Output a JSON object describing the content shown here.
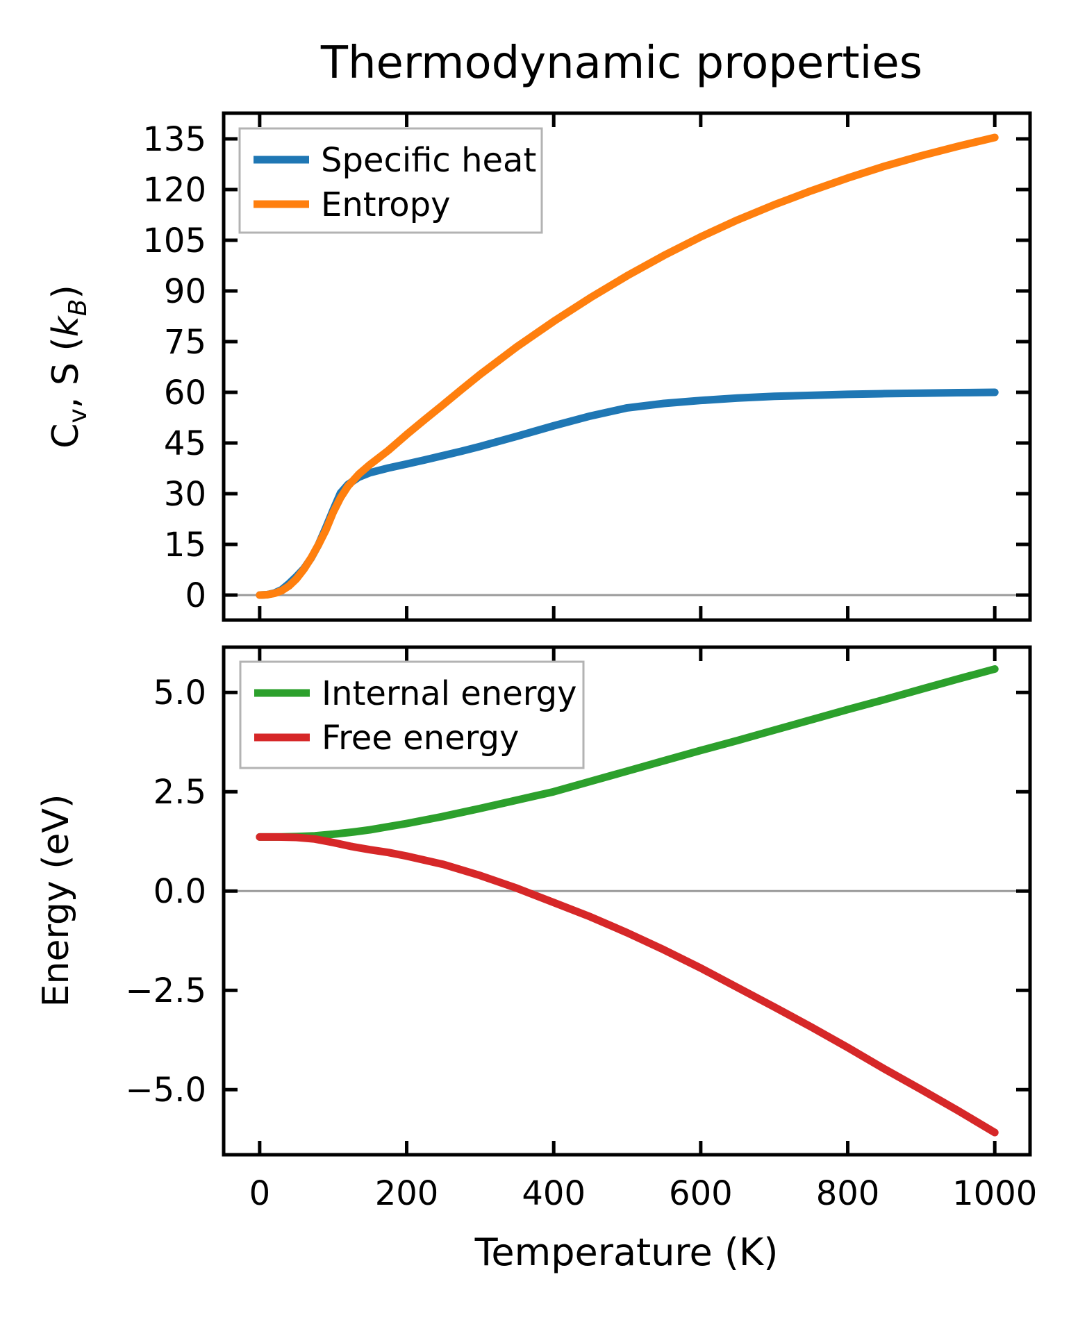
{
  "figure": {
    "title": "Thermodynamic properties",
    "background": "#ffffff",
    "foreground": "#000000",
    "zero_line_color": "#9a9a9a",
    "legend_frame_color": "#b3b3b3"
  },
  "chart_data": [
    {
      "type": "line",
      "panel": "top",
      "ylabel": "Cv, S (kB)",
      "ylabel_segments": [
        {
          "text": "C"
        },
        {
          "text": "v",
          "sub": true
        },
        {
          "text": ", S ("
        },
        {
          "text": "k",
          "italic": true
        },
        {
          "text": "B",
          "sub": true,
          "italic": true
        },
        {
          "text": ")"
        }
      ],
      "xlabel": "",
      "xlim": [
        -49,
        1048
      ],
      "ylim": [
        -7.4,
        142.6
      ],
      "xticks": [
        0,
        200,
        400,
        600,
        800,
        1000
      ],
      "xtick_labels": [
        "0",
        "200",
        "400",
        "600",
        "800",
        "1000"
      ],
      "yticks": [
        0,
        15,
        30,
        45,
        60,
        75,
        90,
        105,
        120,
        135
      ],
      "ytick_labels": [
        "0",
        "15",
        "30",
        "45",
        "60",
        "75",
        "90",
        "105",
        "120",
        "135"
      ],
      "zero_line": true,
      "legend_position": "upper left",
      "x": [
        0,
        10,
        20,
        30,
        40,
        50,
        60,
        70,
        80,
        90,
        100,
        110,
        120,
        135,
        150,
        175,
        200,
        225,
        250,
        275,
        300,
        350,
        400,
        450,
        500,
        550,
        600,
        650,
        700,
        750,
        800,
        850,
        900,
        950,
        1000
      ],
      "series": [
        {
          "name": "Specific heat",
          "color": "#1f77b4",
          "values": [
            0,
            0.1,
            0.6,
            1.6,
            3.4,
            5.5,
            7.8,
            10.9,
            14.9,
            19.9,
            25.2,
            30.2,
            32.7,
            34.9,
            36.2,
            37.6,
            38.8,
            40.0,
            41.3,
            42.6,
            44.0,
            47.0,
            50.1,
            53.0,
            55.4,
            56.7,
            57.6,
            58.3,
            58.8,
            59.1,
            59.4,
            59.6,
            59.75,
            59.9,
            60.0
          ]
        },
        {
          "name": "Entropy",
          "color": "#ff7f0e",
          "values": [
            0,
            0.1,
            0.5,
            1.3,
            2.7,
            4.8,
            7.6,
            11.0,
            14.9,
            19.2,
            24.5,
            28.8,
            32.2,
            35.8,
            38.6,
            42.8,
            47.5,
            52.0,
            56.4,
            60.9,
            65.3,
            73.5,
            81.0,
            88.0,
            94.5,
            100.5,
            106.0,
            111.0,
            115.5,
            119.6,
            123.4,
            126.9,
            130.0,
            132.8,
            135.4
          ]
        }
      ]
    },
    {
      "type": "line",
      "panel": "bottom",
      "ylabel": "Energy (eV)",
      "xlabel": "Temperature (K)",
      "xlim": [
        -49,
        1048
      ],
      "ylim": [
        -6.64,
        6.14
      ],
      "xticks": [
        0,
        200,
        400,
        600,
        800,
        1000
      ],
      "xtick_labels": [
        "0",
        "200",
        "400",
        "600",
        "800",
        "1000"
      ],
      "yticks": [
        5.0,
        2.5,
        0.0,
        -2.5,
        -5.0
      ],
      "ytick_labels": [
        "5.0",
        "2.5",
        "0.0",
        "−2.5",
        "−5.0"
      ],
      "zero_line": true,
      "legend_position": "upper left",
      "x": [
        0,
        25,
        50,
        75,
        100,
        125,
        150,
        175,
        200,
        250,
        300,
        350,
        400,
        450,
        500,
        550,
        600,
        650,
        700,
        750,
        800,
        850,
        900,
        950,
        1000
      ],
      "series": [
        {
          "name": "Internal energy",
          "color": "#2ca02c",
          "values": [
            1.36,
            1.36,
            1.37,
            1.39,
            1.43,
            1.48,
            1.54,
            1.62,
            1.7,
            1.88,
            2.08,
            2.29,
            2.5,
            2.76,
            3.02,
            3.28,
            3.54,
            3.79,
            4.05,
            4.31,
            4.57,
            4.82,
            5.08,
            5.34,
            5.59
          ]
        },
        {
          "name": "Free energy",
          "color": "#d62728",
          "values": [
            1.36,
            1.36,
            1.35,
            1.31,
            1.22,
            1.12,
            1.04,
            0.97,
            0.88,
            0.67,
            0.39,
            0.07,
            -0.29,
            -0.65,
            -1.05,
            -1.48,
            -1.94,
            -2.43,
            -2.92,
            -3.42,
            -3.94,
            -4.48,
            -5.0,
            -5.53,
            -6.08
          ]
        }
      ]
    }
  ]
}
